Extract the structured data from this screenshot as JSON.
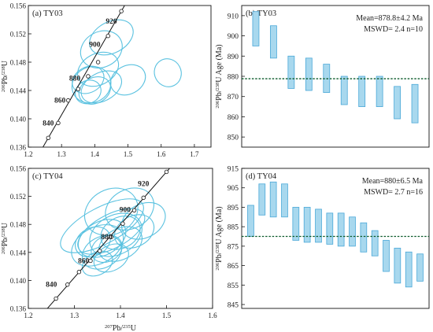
{
  "colors": {
    "ellipse": "#5bc2e0",
    "bar_fill": "#a8d8ee",
    "bar_stroke": "#4aa8d8",
    "mean_line": "#0a5a2a",
    "concordia": "#111111",
    "axis": "#111111"
  },
  "chart_data": [
    {
      "id": "a",
      "type": "scatter",
      "subtype": "concordia-ellipses",
      "label": "(a) TY03",
      "ylabel": "206Pb/238U",
      "xlim": [
        1.2,
        1.75
      ],
      "ylim": [
        0.136,
        0.156
      ],
      "xticks": [
        "1.2",
        "1.3",
        "1.4",
        "1.5",
        "1.6",
        "1.7"
      ],
      "yticks": [
        "0.136",
        "0.140",
        "0.144",
        "0.148",
        "0.152",
        "0.156"
      ],
      "concordia": {
        "points": [
          [
            1.26,
            0.1373
          ],
          [
            1.29,
            0.1394
          ],
          [
            1.32,
            0.1426
          ],
          [
            1.35,
            0.1442
          ],
          [
            1.38,
            0.146
          ],
          [
            1.41,
            0.148
          ],
          [
            1.44,
            0.1517
          ],
          [
            1.48,
            0.1552
          ]
        ],
        "age_labels": [
          {
            "age": "840",
            "x": 1.26,
            "y": 0.1394
          },
          {
            "age": "860",
            "x": 1.295,
            "y": 0.1426
          },
          {
            "age": "880",
            "x": 1.34,
            "y": 0.1457
          },
          {
            "age": "900",
            "x": 1.4,
            "y": 0.1505
          },
          {
            "age": "920",
            "x": 1.45,
            "y": 0.1538
          }
        ]
      },
      "ellipses": [
        {
          "x": 1.45,
          "y": 0.1515,
          "rx": 0.07,
          "ry": 0.0022
        },
        {
          "x": 1.42,
          "y": 0.1498,
          "rx": 0.065,
          "ry": 0.0025
        },
        {
          "x": 1.41,
          "y": 0.147,
          "rx": 0.065,
          "ry": 0.0022
        },
        {
          "x": 1.38,
          "y": 0.1455,
          "rx": 0.05,
          "ry": 0.0018
        },
        {
          "x": 1.39,
          "y": 0.1448,
          "rx": 0.06,
          "ry": 0.0025
        },
        {
          "x": 1.42,
          "y": 0.1445,
          "rx": 0.065,
          "ry": 0.002
        },
        {
          "x": 1.4,
          "y": 0.144,
          "rx": 0.05,
          "ry": 0.0018
        },
        {
          "x": 1.38,
          "y": 0.1438,
          "rx": 0.04,
          "ry": 0.0016
        },
        {
          "x": 1.5,
          "y": 0.1455,
          "rx": 0.055,
          "ry": 0.002
        },
        {
          "x": 1.62,
          "y": 0.1465,
          "rx": 0.04,
          "ry": 0.002
        }
      ]
    },
    {
      "id": "b",
      "type": "bar",
      "subtype": "floating-error-bars",
      "label": "(b) TY03",
      "ylabel": "206Pb/238U Age (Ma)",
      "ylim": [
        845,
        915
      ],
      "yticks": [
        "850",
        "860",
        "870",
        "880",
        "890",
        "900",
        "910"
      ],
      "annotation_line1": "Mean=878.8±4.2 Ma",
      "annotation_line2": "MSWD= 2.4   n=10",
      "mean": 878.8,
      "bars": [
        [
          895,
          912
        ],
        [
          889,
          905
        ],
        [
          874,
          890
        ],
        [
          873,
          889
        ],
        [
          872,
          886
        ],
        [
          866,
          880
        ],
        [
          865,
          880
        ],
        [
          865,
          880
        ],
        [
          859,
          875
        ],
        [
          857,
          876
        ]
      ]
    },
    {
      "id": "c",
      "type": "scatter",
      "subtype": "concordia-ellipses",
      "label": "(c) TY04",
      "xlabel": "207Pb/235U",
      "ylabel": "206Pb/238U",
      "xlim": [
        1.2,
        1.6
      ],
      "ylim": [
        0.136,
        0.156
      ],
      "xticks": [
        "1.2",
        "1.3",
        "1.4",
        "1.5",
        "1.6"
      ],
      "yticks": [
        "0.136",
        "0.140",
        "0.144",
        "0.148",
        "0.152",
        "0.156"
      ],
      "concordia": {
        "points": [
          [
            1.26,
            0.1374
          ],
          [
            1.285,
            0.1394
          ],
          [
            1.31,
            0.1412
          ],
          [
            1.335,
            0.1428
          ],
          [
            1.355,
            0.1442
          ],
          [
            1.38,
            0.1462
          ],
          [
            1.405,
            0.1481
          ],
          [
            1.43,
            0.15
          ],
          [
            1.45,
            0.1518
          ],
          [
            1.5,
            0.1555
          ]
        ],
        "age_labels": [
          {
            "age": "840",
            "x": 1.25,
            "y": 0.1394
          },
          {
            "age": "860",
            "x": 1.32,
            "y": 0.1428
          },
          {
            "age": "880",
            "x": 1.37,
            "y": 0.1462
          },
          {
            "age": "900",
            "x": 1.41,
            "y": 0.1501
          },
          {
            "age": "920",
            "x": 1.45,
            "y": 0.1538
          }
        ]
      },
      "ellipses": [
        {
          "x": 1.42,
          "y": 0.1502,
          "rx": 0.055,
          "ry": 0.0028
        },
        {
          "x": 1.38,
          "y": 0.1498,
          "rx": 0.06,
          "ry": 0.0032
        },
        {
          "x": 1.36,
          "y": 0.1478,
          "rx": 0.1,
          "ry": 0.0026
        },
        {
          "x": 1.38,
          "y": 0.147,
          "rx": 0.08,
          "ry": 0.0024
        },
        {
          "x": 1.39,
          "y": 0.1465,
          "rx": 0.06,
          "ry": 0.0028
        },
        {
          "x": 1.36,
          "y": 0.146,
          "rx": 0.055,
          "ry": 0.0024
        },
        {
          "x": 1.35,
          "y": 0.145,
          "rx": 0.06,
          "ry": 0.0026
        },
        {
          "x": 1.4,
          "y": 0.1452,
          "rx": 0.05,
          "ry": 0.0022
        },
        {
          "x": 1.36,
          "y": 0.144,
          "rx": 0.045,
          "ry": 0.0022
        },
        {
          "x": 1.38,
          "y": 0.1432,
          "rx": 0.04,
          "ry": 0.0018
        },
        {
          "x": 1.35,
          "y": 0.1424,
          "rx": 0.035,
          "ry": 0.0016
        },
        {
          "x": 1.37,
          "y": 0.1445,
          "rx": 0.035,
          "ry": 0.0018
        },
        {
          "x": 1.43,
          "y": 0.147,
          "rx": 0.045,
          "ry": 0.0022
        },
        {
          "x": 1.45,
          "y": 0.1485,
          "rx": 0.05,
          "ry": 0.0024
        },
        {
          "x": 1.34,
          "y": 0.1455,
          "rx": 0.04,
          "ry": 0.002
        },
        {
          "x": 1.4,
          "y": 0.1468,
          "rx": 0.045,
          "ry": 0.0022
        }
      ]
    },
    {
      "id": "d",
      "type": "bar",
      "subtype": "floating-error-bars",
      "label": "(d) TY04",
      "ylabel": "206Pb/238U Age (Ma)",
      "ylim": [
        843,
        915
      ],
      "yticks": [
        "845",
        "855",
        "865",
        "875",
        "885",
        "895",
        "905",
        "915"
      ],
      "annotation_line1": "Mean=880±6.5 Ma",
      "annotation_line2": "MSWD= 2.7   n=16",
      "mean": 880,
      "bars": [
        [
          880,
          896
        ],
        [
          891,
          907
        ],
        [
          890,
          908
        ],
        [
          890,
          907
        ],
        [
          878,
          895
        ],
        [
          877,
          895
        ],
        [
          877,
          894
        ],
        [
          876,
          892
        ],
        [
          875,
          892
        ],
        [
          875,
          890
        ],
        [
          872,
          887
        ],
        [
          870,
          883
        ],
        [
          862,
          878
        ],
        [
          856,
          874
        ],
        [
          854,
          872
        ],
        [
          857,
          871
        ]
      ]
    }
  ]
}
